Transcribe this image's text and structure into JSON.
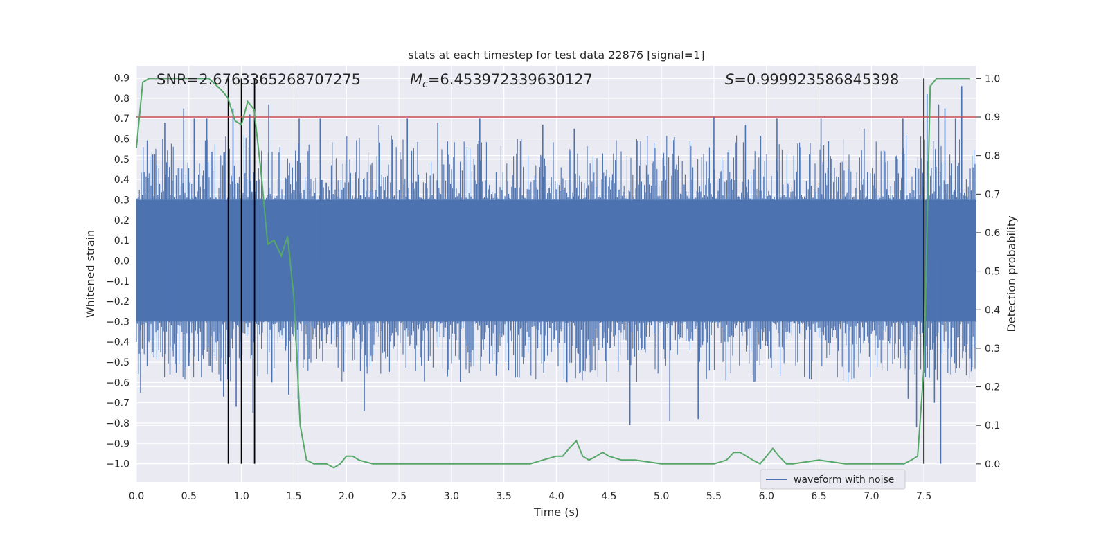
{
  "chart_data": {
    "type": "line",
    "title": "stats at each timestep for test data 22876 [signal=1]",
    "xlabel": "Time (s)",
    "ylabel": "Whitened strain",
    "y2label": "Detection probability",
    "xlim": [
      0.0,
      8.0
    ],
    "ylim": [
      -1.09,
      0.96
    ],
    "y2lim": [
      -0.047,
      1.033
    ],
    "xticks": [
      "0.0",
      "0.5",
      "1.0",
      "1.5",
      "2.0",
      "2.5",
      "3.0",
      "3.5",
      "4.0",
      "4.5",
      "5.0",
      "5.5",
      "6.0",
      "6.5",
      "7.0",
      "7.5"
    ],
    "yticks": [
      "−1.0",
      "−0.9",
      "−0.8",
      "−0.7",
      "−0.6",
      "−0.5",
      "−0.4",
      "−0.3",
      "−0.2",
      "−0.1",
      "0.0",
      "0.1",
      "0.2",
      "0.3",
      "0.4",
      "0.5",
      "0.6",
      "0.7",
      "0.8",
      "0.9"
    ],
    "y2ticks": [
      "0.0",
      "0.1",
      "0.2",
      "0.3",
      "0.4",
      "0.5",
      "0.6",
      "0.7",
      "0.8",
      "0.9",
      "1.0"
    ],
    "grid": true,
    "legend": {
      "position": "bottom-right",
      "entries": [
        "waveform with noise"
      ]
    },
    "annotations": {
      "snr": "SNR=2.6763365268707275",
      "mc_symbol": "M",
      "mc_sub": "c",
      "mc_value": "=6.453972339630127",
      "s_symbol": "S",
      "s_value": "=0.999923586845398"
    },
    "threshold": {
      "value": 0.9,
      "axis": "y2",
      "color": "#c44e52"
    },
    "event_lines_x": [
      0.875,
      1.0,
      1.125,
      7.5
    ],
    "event_line_y2_top": 1.0,
    "strain": {
      "name": "waveform with noise",
      "color": "#4c72b0",
      "base_envelope": 0.3,
      "spikes": [
        {
          "x": 0.04,
          "y": -0.65
        },
        {
          "x": 0.15,
          "y": 0.52
        },
        {
          "x": 0.27,
          "y": 0.68
        },
        {
          "x": 0.32,
          "y": -0.56
        },
        {
          "x": 0.45,
          "y": 0.75
        },
        {
          "x": 0.5,
          "y": -0.52
        },
        {
          "x": 0.55,
          "y": 0.7
        },
        {
          "x": 0.67,
          "y": 0.7
        },
        {
          "x": 0.83,
          "y": -0.67
        },
        {
          "x": 0.92,
          "y": 0.75
        },
        {
          "x": 0.95,
          "y": -0.72
        },
        {
          "x": 1.08,
          "y": 0.72
        },
        {
          "x": 1.11,
          "y": -0.75
        },
        {
          "x": 1.26,
          "y": 0.77
        },
        {
          "x": 1.29,
          "y": -0.6
        },
        {
          "x": 1.45,
          "y": -0.66
        },
        {
          "x": 1.54,
          "y": -0.68
        },
        {
          "x": 1.55,
          "y": 0.7
        },
        {
          "x": 1.75,
          "y": 0.7
        },
        {
          "x": 2.17,
          "y": -0.74
        },
        {
          "x": 2.31,
          "y": 0.67
        },
        {
          "x": 2.58,
          "y": 0.7
        },
        {
          "x": 2.87,
          "y": 0.68
        },
        {
          "x": 3.27,
          "y": 0.7
        },
        {
          "x": 3.43,
          "y": -0.56
        },
        {
          "x": 3.87,
          "y": 0.67
        },
        {
          "x": 4.1,
          "y": -0.6
        },
        {
          "x": 4.17,
          "y": 0.65
        },
        {
          "x": 4.7,
          "y": -0.81
        },
        {
          "x": 5.08,
          "y": -0.79
        },
        {
          "x": 5.35,
          "y": -0.78
        },
        {
          "x": 5.5,
          "y": 0.71
        },
        {
          "x": 5.8,
          "y": 0.67
        },
        {
          "x": 6.1,
          "y": 0.7
        },
        {
          "x": 6.52,
          "y": 0.7
        },
        {
          "x": 6.93,
          "y": 0.65
        },
        {
          "x": 7.3,
          "y": 0.7
        },
        {
          "x": 7.35,
          "y": -0.68
        },
        {
          "x": 7.43,
          "y": -0.82
        },
        {
          "x": 7.53,
          "y": 0.82
        },
        {
          "x": 7.6,
          "y": -0.7
        },
        {
          "x": 7.64,
          "y": 0.77
        },
        {
          "x": 7.66,
          "y": -1.0
        },
        {
          "x": 7.7,
          "y": 0.75
        },
        {
          "x": 7.8,
          "y": 0.7
        },
        {
          "x": 7.86,
          "y": 0.86
        }
      ]
    },
    "probability": {
      "name": "detection probability",
      "color": "#55a868",
      "x": [
        0.0,
        0.06,
        0.12,
        0.25,
        0.5,
        0.69,
        0.81,
        0.87,
        0.94,
        1.0,
        1.06,
        1.12,
        1.19,
        1.25,
        1.31,
        1.38,
        1.44,
        1.5,
        1.56,
        1.62,
        1.69,
        1.75,
        1.81,
        1.88,
        1.94,
        2.0,
        2.06,
        2.12,
        2.25,
        2.5,
        3.0,
        3.5,
        3.75,
        3.87,
        4.0,
        4.06,
        4.12,
        4.19,
        4.25,
        4.31,
        4.38,
        4.44,
        4.5,
        4.62,
        4.75,
        5.0,
        5.25,
        5.5,
        5.62,
        5.69,
        5.75,
        5.81,
        5.87,
        5.94,
        6.0,
        6.06,
        6.12,
        6.19,
        6.25,
        6.5,
        6.75,
        7.0,
        7.25,
        7.31,
        7.38,
        7.44,
        7.5,
        7.56,
        7.62,
        7.69,
        7.75,
        7.81,
        7.94
      ],
      "y": [
        0.82,
        0.99,
        1.0,
        1.0,
        1.0,
        1.0,
        0.97,
        0.95,
        0.89,
        0.88,
        0.94,
        0.92,
        0.75,
        0.57,
        0.58,
        0.54,
        0.59,
        0.43,
        0.1,
        0.01,
        0.0,
        0.0,
        0.0,
        -0.01,
        0.0,
        0.02,
        0.02,
        0.01,
        0.0,
        0.0,
        0.0,
        0.0,
        0.0,
        0.01,
        0.02,
        0.02,
        0.04,
        0.06,
        0.02,
        0.01,
        0.02,
        0.03,
        0.02,
        0.01,
        0.01,
        0.0,
        0.0,
        0.0,
        0.01,
        0.03,
        0.03,
        0.02,
        0.01,
        0.0,
        0.02,
        0.04,
        0.02,
        0.0,
        0.0,
        0.01,
        0.0,
        0.0,
        0.0,
        0.0,
        0.01,
        0.02,
        0.25,
        0.98,
        1.0,
        1.0,
        1.0,
        1.0,
        1.0
      ]
    }
  }
}
